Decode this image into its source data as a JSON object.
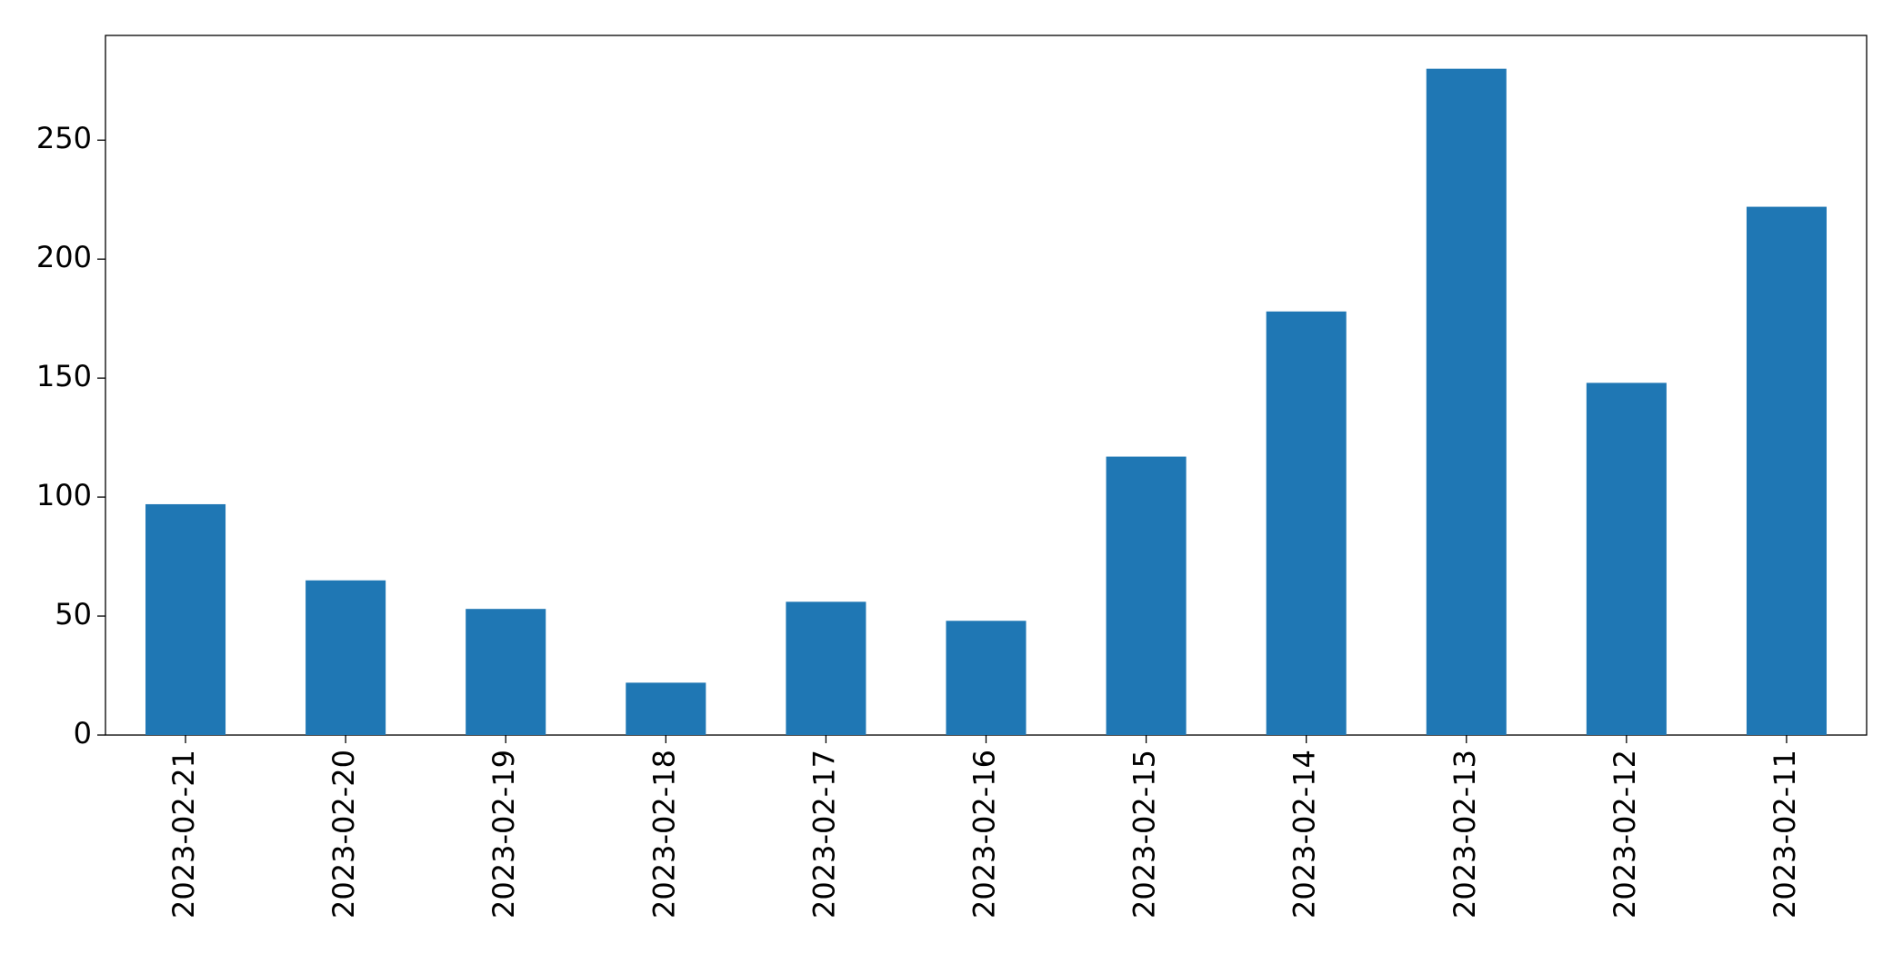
{
  "chart_data": {
    "type": "bar",
    "categories": [
      "2023-02-21",
      "2023-02-20",
      "2023-02-19",
      "2023-02-18",
      "2023-02-17",
      "2023-02-16",
      "2023-02-15",
      "2023-02-14",
      "2023-02-13",
      "2023-02-12",
      "2023-02-11"
    ],
    "values": [
      97,
      65,
      53,
      22,
      56,
      48,
      117,
      178,
      280,
      148,
      222
    ],
    "color": "#1f77b4",
    "ylim": [
      0,
      294
    ],
    "yticks": [
      0,
      50,
      100,
      150,
      200,
      250
    ],
    "grid": false
  }
}
